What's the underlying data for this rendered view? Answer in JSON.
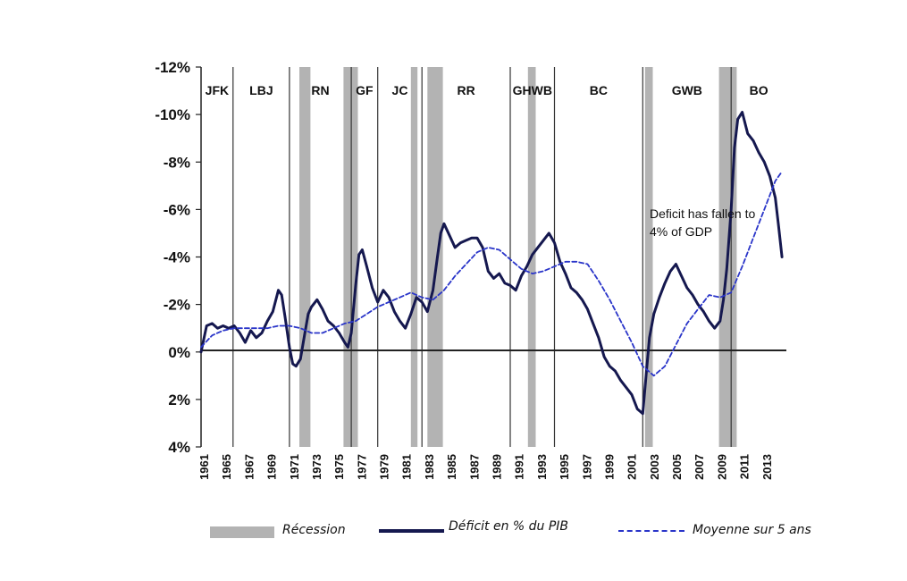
{
  "chart_data": {
    "type": "line",
    "title": "",
    "xlabel": "",
    "ylabel": "",
    "xlim": [
      1961,
      2014
    ],
    "ylim": [
      4,
      -12
    ],
    "y_ticks": [
      {
        "value": -12,
        "label": "-12%"
      },
      {
        "value": -10,
        "label": "-10%"
      },
      {
        "value": -8,
        "label": "-8%"
      },
      {
        "value": -6,
        "label": "-6%"
      },
      {
        "value": -4,
        "label": "-4%"
      },
      {
        "value": -2,
        "label": "-2%"
      },
      {
        "value": 0,
        "label": "0%"
      },
      {
        "value": 2,
        "label": "2%"
      },
      {
        "value": 4,
        "label": "4%"
      }
    ],
    "x_ticks": [
      "1961",
      "1965",
      "1967",
      "1969",
      "1971",
      "1973",
      "1975",
      "1977",
      "1979",
      "1981",
      "1983",
      "1985",
      "1987",
      "1989",
      "1991",
      "1993",
      "1995",
      "1997",
      "1999",
      "2001",
      "2003",
      "2005",
      "2007",
      "2009",
      "2011",
      "2013"
    ],
    "presidents": [
      {
        "label": "JFK",
        "start": 1961.0
      },
      {
        "label": "LBJ",
        "start": 1963.9
      },
      {
        "label": "RN",
        "start": 1969.0
      },
      {
        "label": "GF",
        "start": 1974.6
      },
      {
        "label": "JC",
        "start": 1977.0
      },
      {
        "label": "RR",
        "start": 1981.0
      },
      {
        "label": "GHWB",
        "start": 1989.0
      },
      {
        "label": "BC",
        "start": 1993.0
      },
      {
        "label": "GWB",
        "start": 2001.0
      },
      {
        "label": "BO",
        "start": 2009.0
      }
    ],
    "recessions": [
      [
        1969.9,
        1970.9
      ],
      [
        1973.9,
        1975.2
      ],
      [
        1980.0,
        1980.6
      ],
      [
        1981.5,
        1982.9
      ],
      [
        1990.6,
        1991.3
      ],
      [
        2001.2,
        2001.9
      ],
      [
        2007.9,
        2009.5
      ]
    ],
    "series": [
      {
        "name": "Déficit en % du PIB",
        "x": [
          1961.0,
          1961.5,
          1962.0,
          1962.5,
          1963.0,
          1963.5,
          1964.0,
          1964.5,
          1965.0,
          1965.5,
          1966.0,
          1966.5,
          1967.0,
          1967.5,
          1968.0,
          1968.3,
          1968.6,
          1969.0,
          1969.3,
          1969.6,
          1970.0,
          1970.4,
          1970.7,
          1971.0,
          1971.5,
          1972.0,
          1972.5,
          1973.0,
          1973.5,
          1974.0,
          1974.3,
          1974.6,
          1975.0,
          1975.3,
          1975.6,
          1976.0,
          1976.5,
          1977.0,
          1977.5,
          1978.0,
          1978.5,
          1979.0,
          1979.5,
          1980.0,
          1980.5,
          1981.0,
          1981.5,
          1982.0,
          1982.4,
          1982.7,
          1983.0,
          1983.5,
          1984.0,
          1984.5,
          1985.0,
          1985.5,
          1986.0,
          1986.5,
          1987.0,
          1987.5,
          1988.0,
          1988.5,
          1989.0,
          1989.5,
          1990.0,
          1990.5,
          1991.0,
          1991.5,
          1992.0,
          1992.5,
          1993.0,
          1993.5,
          1994.0,
          1994.5,
          1995.0,
          1995.5,
          1996.0,
          1996.5,
          1997.0,
          1997.5,
          1998.0,
          1998.5,
          1999.0,
          1999.5,
          2000.0,
          2000.5,
          2001.0,
          2001.3,
          2001.6,
          2002.0,
          2002.5,
          2003.0,
          2003.5,
          2004.0,
          2004.5,
          2005.0,
          2005.5,
          2006.0,
          2006.5,
          2007.0,
          2007.5,
          2008.0,
          2008.3,
          2008.6,
          2009.0,
          2009.3,
          2009.6,
          2010.0,
          2010.5,
          2011.0,
          2011.5,
          2012.0,
          2012.5,
          2013.0,
          2013.3,
          2013.6
        ],
        "values": [
          0.0,
          -1.1,
          -1.2,
          -1.0,
          -1.1,
          -1.0,
          -1.1,
          -0.8,
          -0.4,
          -0.9,
          -0.6,
          -0.8,
          -1.3,
          -1.7,
          -2.6,
          -2.4,
          -1.5,
          -0.2,
          0.5,
          0.6,
          0.3,
          -0.8,
          -1.6,
          -1.9,
          -2.2,
          -1.8,
          -1.3,
          -1.1,
          -0.8,
          -0.4,
          -0.2,
          -0.8,
          -2.8,
          -4.1,
          -4.3,
          -3.6,
          -2.7,
          -2.1,
          -2.6,
          -2.3,
          -1.7,
          -1.3,
          -1.0,
          -1.6,
          -2.3,
          -2.1,
          -1.7,
          -2.6,
          -4.0,
          -5.0,
          -5.4,
          -4.9,
          -4.4,
          -4.6,
          -4.7,
          -4.8,
          -4.8,
          -4.4,
          -3.4,
          -3.1,
          -3.3,
          -2.9,
          -2.8,
          -2.6,
          -3.2,
          -3.6,
          -4.1,
          -4.4,
          -4.7,
          -5.0,
          -4.6,
          -3.8,
          -3.3,
          -2.7,
          -2.5,
          -2.2,
          -1.8,
          -1.2,
          -0.6,
          0.2,
          0.6,
          0.8,
          1.2,
          1.5,
          1.8,
          2.4,
          2.6,
          1.0,
          -0.6,
          -1.6,
          -2.3,
          -2.9,
          -3.4,
          -3.7,
          -3.2,
          -2.7,
          -2.4,
          -2.0,
          -1.7,
          -1.3,
          -1.0,
          -1.3,
          -2.2,
          -3.5,
          -6.0,
          -8.6,
          -9.8,
          -10.1,
          -9.2,
          -8.9,
          -8.4,
          -8.0,
          -7.4,
          -6.5,
          -5.3,
          -4.0
        ]
      },
      {
        "name": "Moyenne sur 5 ans",
        "x": [
          1961.0,
          1962,
          1963,
          1964,
          1965,
          1966,
          1967,
          1968,
          1969,
          1970,
          1971,
          1972,
          1973,
          1974,
          1975,
          1976,
          1977,
          1978,
          1979,
          1980,
          1981,
          1982,
          1983,
          1984,
          1985,
          1986,
          1987,
          1988,
          1989,
          1990,
          1991,
          1992,
          1993,
          1994,
          1995,
          1996,
          1997,
          1998,
          1999,
          2000,
          2001,
          2002,
          2003,
          2004,
          2005,
          2006,
          2007,
          2008,
          2009,
          2010,
          2011,
          2012,
          2013,
          2013.6
        ],
        "values": [
          -0.2,
          -0.7,
          -0.9,
          -1.0,
          -1.0,
          -1.0,
          -1.0,
          -1.1,
          -1.1,
          -1.0,
          -0.8,
          -0.8,
          -1.0,
          -1.2,
          -1.3,
          -1.6,
          -1.9,
          -2.1,
          -2.3,
          -2.5,
          -2.3,
          -2.2,
          -2.6,
          -3.2,
          -3.7,
          -4.2,
          -4.4,
          -4.3,
          -3.9,
          -3.5,
          -3.3,
          -3.4,
          -3.6,
          -3.8,
          -3.8,
          -3.7,
          -3.0,
          -2.2,
          -1.3,
          -0.4,
          0.6,
          1.0,
          0.6,
          -0.3,
          -1.2,
          -1.8,
          -2.4,
          -2.3,
          -2.5,
          -3.6,
          -4.8,
          -6.0,
          -7.2,
          -7.6
        ]
      }
    ],
    "annotation": {
      "line1": "Deficit  has fallen to",
      "line2": "4% of GDP"
    },
    "legend": [
      {
        "label": "Récession",
        "color": "#b3b3b3",
        "style": "bar"
      },
      {
        "label": "Déficit en % du PIB",
        "color": "#15184f",
        "style": "solid"
      },
      {
        "label": "Moyenne sur 5 ans",
        "color": "#2a35c9",
        "style": "dashed"
      }
    ]
  }
}
